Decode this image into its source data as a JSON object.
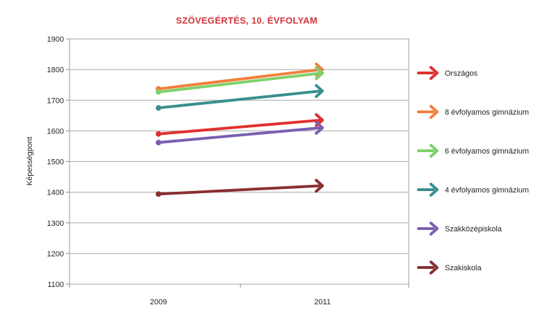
{
  "chart_data": {
    "type": "line",
    "title": "SZÖVEGÉRTÉS, 10. ÉVFOLYAM",
    "xlabel": "",
    "ylabel": "Képességpont",
    "categories": [
      "2009",
      "2011"
    ],
    "ylim": [
      1100,
      1900
    ],
    "yticks": [
      1100,
      1200,
      1300,
      1400,
      1500,
      1600,
      1700,
      1800,
      1900
    ],
    "grid": true,
    "legend_position": "right",
    "series": [
      {
        "name": "Országos",
        "values": [
          1590,
          1635
        ],
        "color": "#e0302f"
      },
      {
        "name": "8 évfolyamos gimnázium",
        "values": [
          1737,
          1800
        ],
        "color": "#f0803c"
      },
      {
        "name": "6 évfolyamos gimnázium",
        "values": [
          1727,
          1788
        ],
        "color": "#7ed06a"
      },
      {
        "name": "4 évfolyamos gimnázium",
        "values": [
          1675,
          1730
        ],
        "color": "#3a8f8f"
      },
      {
        "name": "Szakközépiskola",
        "values": [
          1562,
          1610
        ],
        "color": "#7a5fb0"
      },
      {
        "name": "Szakiskola",
        "values": [
          1394,
          1421
        ],
        "color": "#8a3030"
      }
    ]
  }
}
